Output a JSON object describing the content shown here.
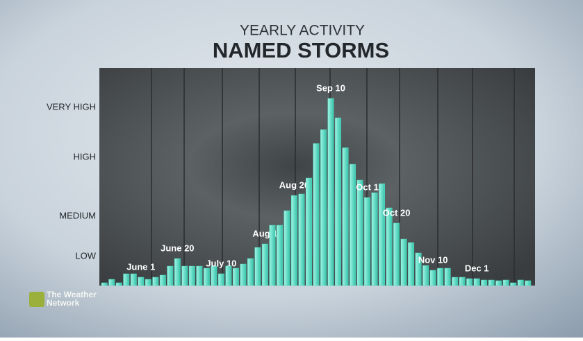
{
  "chart_data": {
    "type": "bar",
    "title": "YEARLY ACTIVITY",
    "subtitle": "NAMED STORMS",
    "categories": [
      null,
      null,
      null,
      null,
      null,
      "June 1",
      null,
      null,
      null,
      null,
      "June 20",
      null,
      null,
      null,
      null,
      null,
      "July 10",
      null,
      null,
      null,
      null,
      null,
      "Aug 1",
      null,
      null,
      null,
      "Aug 20",
      null,
      null,
      null,
      null,
      "Sep 10",
      null,
      null,
      null,
      null,
      "Oct 1",
      null,
      null,
      null,
      "Oct 20",
      null,
      null,
      null,
      null,
      "Nov 10",
      null,
      null,
      null,
      null,
      null,
      "Dec 1",
      null,
      null,
      null,
      null,
      null,
      null,
      null
    ],
    "values": [
      4,
      9,
      4,
      17,
      17,
      12,
      9,
      12,
      15,
      28,
      39,
      28,
      28,
      28,
      25,
      28,
      17,
      28,
      25,
      31,
      39,
      55,
      60,
      87,
      87,
      108,
      130,
      132,
      155,
      205,
      225,
      270,
      242,
      199,
      175,
      152,
      127,
      134,
      147,
      112,
      90,
      67,
      62,
      47,
      29,
      22,
      25,
      25,
      12,
      12,
      10,
      10,
      8,
      8,
      7,
      8,
      4,
      8,
      7
    ],
    "color": "#55dcc4",
    "ylim": [
      0,
      314
    ],
    "yticks": [
      {
        "value": 42,
        "label": "LOW"
      },
      {
        "value": 100,
        "label": "MEDIUM"
      },
      {
        "value": 185,
        "label": "HIGH"
      },
      {
        "value": 257,
        "label": "VERY HIGH"
      }
    ],
    "grid": false
  },
  "branding": {
    "line1": "The Weather",
    "line2": "Network"
  }
}
